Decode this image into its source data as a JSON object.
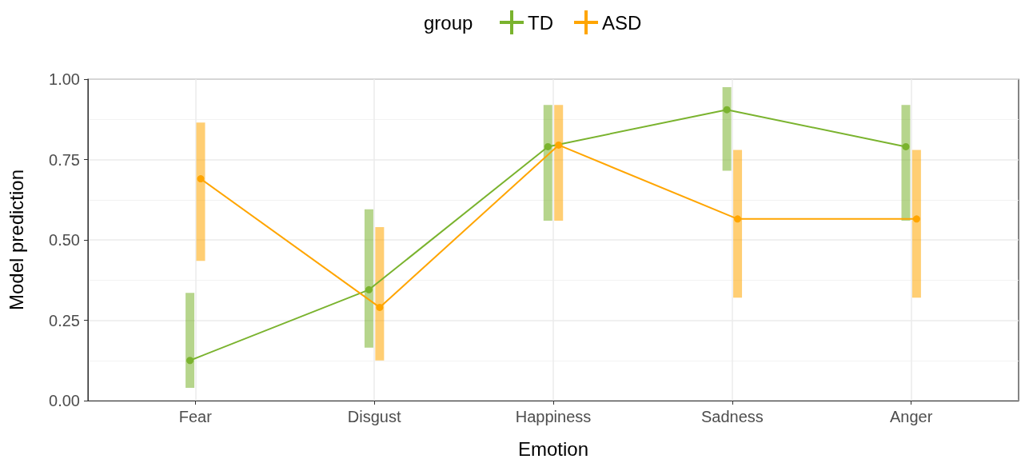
{
  "chart_data": {
    "type": "line",
    "xlabel": "Emotion",
    "ylabel": "Model prediction",
    "legend_title": "group",
    "categories": [
      "Fear",
      "Disgust",
      "Happiness",
      "Sadness",
      "Anger"
    ],
    "series": [
      {
        "name": "TD",
        "color": "#7ab32e",
        "values": [
          0.125,
          0.345,
          0.79,
          0.905,
          0.79
        ],
        "errors": [
          [
            0.04,
            0.335
          ],
          [
            0.165,
            0.595
          ],
          [
            0.56,
            0.92
          ],
          [
            0.715,
            0.975
          ],
          [
            0.56,
            0.92
          ]
        ]
      },
      {
        "name": "ASD",
        "color": "#ffa500",
        "values": [
          0.69,
          0.29,
          0.795,
          0.565,
          0.565
        ],
        "errors": [
          [
            0.435,
            0.865
          ],
          [
            0.125,
            0.54
          ],
          [
            0.56,
            0.92
          ],
          [
            0.32,
            0.78
          ],
          [
            0.32,
            0.78
          ]
        ]
      }
    ],
    "ylim": [
      0,
      1
    ],
    "yticks": [
      {
        "value": 0,
        "label": "0.00"
      },
      {
        "value": 0.25,
        "label": "0.25"
      },
      {
        "value": 0.5,
        "label": "0.50"
      },
      {
        "value": 0.75,
        "label": "0.75"
      },
      {
        "value": 1,
        "label": "1.00"
      }
    ],
    "grid": true,
    "legend": "top",
    "marker": "circle",
    "line_style": "solid"
  }
}
